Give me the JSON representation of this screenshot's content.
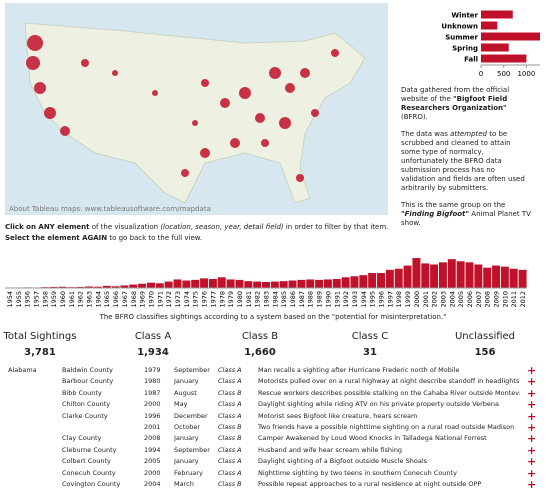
{
  "map": {
    "credit": "About Tableau maps: www.tableausoftware.com/mapdata"
  },
  "chart_data": [
    {
      "type": "hbar",
      "categories": [
        "Winter",
        "Unknown",
        "Summer",
        "Spring",
        "Fall"
      ],
      "values": [
        700,
        360,
        1300,
        610,
        1000
      ],
      "color": "#c0112b",
      "xlim": [
        0,
        1300
      ],
      "xticks": [
        0,
        500,
        1000
      ]
    },
    {
      "type": "bar",
      "categories": [
        "1954",
        "1955",
        "1956",
        "1957",
        "1958",
        "1959",
        "1960",
        "1961",
        "1962",
        "1963",
        "1964",
        "1965",
        "1966",
        "1967",
        "1968",
        "1969",
        "1970",
        "1971",
        "1972",
        "1973",
        "1974",
        "1975",
        "1976",
        "1977",
        "1978",
        "1979",
        "1980",
        "1981",
        "1982",
        "1983",
        "1984",
        "1985",
        "1986",
        "1987",
        "1988",
        "1989",
        "1990",
        "1991",
        "1992",
        "1993",
        "1994",
        "1995",
        "1996",
        "1997",
        "1998",
        "1999",
        "2000",
        "2001",
        "2002",
        "2003",
        "2004",
        "2005",
        "2006",
        "2007",
        "2008",
        "2009",
        "2010",
        "2011",
        "2012"
      ],
      "values": [
        2,
        1,
        3,
        2,
        4,
        5,
        6,
        4,
        5,
        7,
        6,
        10,
        8,
        12,
        16,
        20,
        25,
        22,
        30,
        40,
        35,
        38,
        45,
        42,
        50,
        40,
        38,
        32,
        30,
        28,
        30,
        32,
        35,
        38,
        40,
        38,
        40,
        42,
        50,
        55,
        60,
        70,
        70,
        85,
        90,
        105,
        140,
        115,
        110,
        120,
        135,
        125,
        120,
        110,
        95,
        105,
        100,
        90,
        85
      ],
      "color": "#c0112b",
      "ylim": [
        0,
        145
      ]
    }
  ],
  "info": [
    [
      "Data gathered from the official website of the ",
      "\"Bigfoot Field Researchers Organization\"",
      " (BFRO)."
    ],
    [
      "The data was ",
      "attempted",
      " to be scrubbed and cleaned to attain some type of normalcy, unfortunately the BFRO data submission process has no validation and fields are often used arbitrarily by submitters."
    ],
    [
      "This is the same group on the ",
      "\"Finding Bigfoot\"",
      " Animal Planet TV show."
    ]
  ],
  "instructions": [
    [
      "Click on ANY element",
      " of the visualization ",
      "(location, season, year, detail field)",
      " in order to filter by that item."
    ],
    [
      "Select the element AGAIN",
      " to go back to the full view."
    ]
  ],
  "subtitle": "The BFRO classifies sightings according to a system based on the \"potential for misinterpretation.\"",
  "kpis": [
    {
      "label": "Total Sightings",
      "value": "3,781"
    },
    {
      "label": "Class A",
      "value": "1,934"
    },
    {
      "label": "Class B",
      "value": "1,660"
    },
    {
      "label": "Class C",
      "value": "31"
    },
    {
      "label": "Unclassified",
      "value": "156"
    }
  ],
  "table": {
    "state": "Alabama",
    "rows": [
      [
        "Baldwin County",
        "1979",
        "September",
        "Class A",
        "Man recalls a sighting after Hurricane Frederic north of Mobile"
      ],
      [
        "Barbour County",
        "1980",
        "January",
        "Class A",
        "Motorists pulled over on a rural highway at night describe standoff in headlights ea.."
      ],
      [
        "Bibb County",
        "1987",
        "August",
        "Class B",
        "Rescue workers describes possible stalking on the Cahaba River outside Montevallo"
      ],
      [
        "Chilton County",
        "2000",
        "May",
        "Class A",
        "Daylight sighting while riding ATV on his private property outside Verbena"
      ],
      [
        "Clarke County",
        "1996",
        "December",
        "Class A",
        "Motorist sees Bigfoot like creature, hears scream"
      ],
      [
        null,
        "2001",
        "October",
        "Class B",
        "Two friends have a possible nighttime sighting on a rural road outside Madison"
      ],
      [
        "Clay County",
        "2008",
        "January",
        "Class B",
        "Camper Awakened by Loud Wood Knocks in Talladega National Forrest"
      ],
      [
        "Cleburne County",
        "1994",
        "September",
        "Class A",
        "Husband and wife hear scream while fishing"
      ],
      [
        "Colbert County",
        "2005",
        "January",
        "Class A",
        "Daylight sighting of a Bigfoot outside Muscle Shoals"
      ],
      [
        "Conecuh County",
        "2000",
        "February",
        "Class A",
        "Nighttime sighting by two teens in southern Conecuh County"
      ],
      [
        "Covington County",
        "2004",
        "March",
        "Class B",
        "Possible repeat approaches to a rural residence at night outside OPP"
      ]
    ]
  }
}
